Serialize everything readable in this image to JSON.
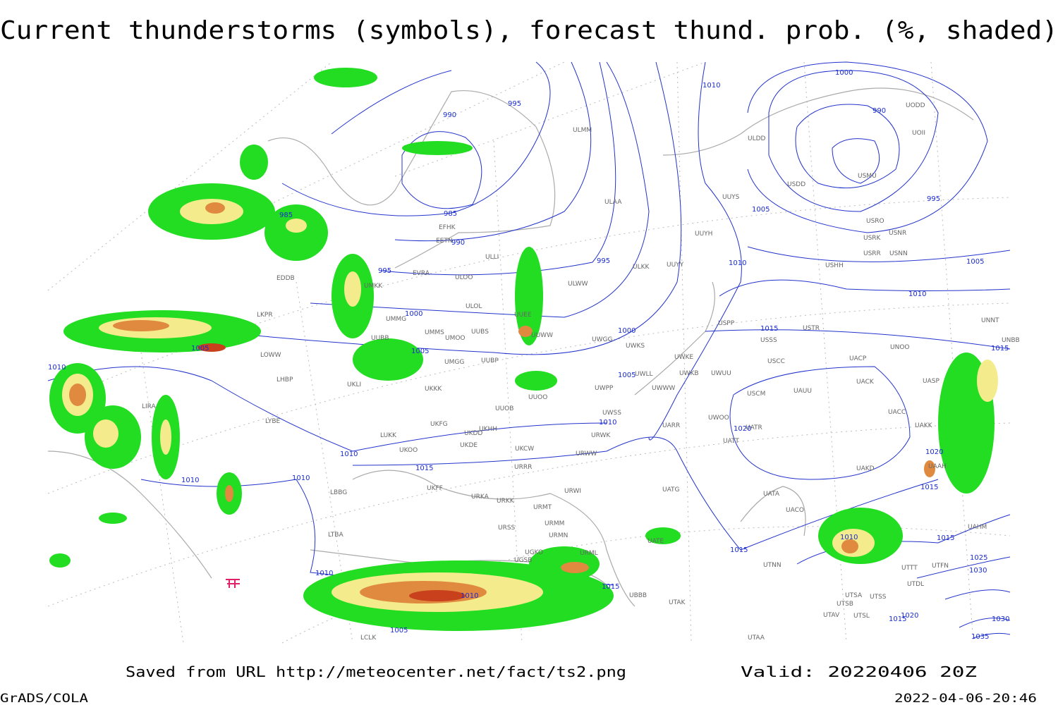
{
  "header": {
    "title": "Current thunderstorms (symbols), forecast thund. prob. (%, shaded)"
  },
  "map": {
    "stations": [
      "ULMM",
      "ULAA",
      "EFHK",
      "EETN",
      "EVRA",
      "ULLI",
      "ULOO",
      "ULWW",
      "ULKK",
      "UUYY",
      "UUYH",
      "UUYS",
      "ULDD",
      "UODD",
      "UOII",
      "USMU",
      "USDD",
      "USRO",
      "USNR",
      "USRK",
      "USRR",
      "USNN",
      "USHH",
      "UMKK",
      "EDDB",
      "LKPR",
      "UMMG",
      "ULOL",
      "UUEE",
      "UUWW",
      "UMMS",
      "UMOO",
      "UUBS",
      "UUBB",
      "UWGG",
      "UWKS",
      "UWKE",
      "UWKB",
      "UWUU",
      "UWWW",
      "UWLL",
      "LOWW",
      "UMGG",
      "UUBP",
      "UKKK",
      "UKLI",
      "LHBP",
      "LIRA",
      "UUOO",
      "UUOB",
      "UWPP",
      "UWSS",
      "LYBE",
      "UKFG",
      "UKDD",
      "UKHH",
      "UKDE",
      "UKCW",
      "URWW",
      "URWK",
      "UARR",
      "UWOO",
      "UATR",
      "UATT",
      "UACC",
      "UAKK",
      "UASP",
      "UACK",
      "UACP",
      "USCM",
      "UAUU",
      "USCC",
      "UNOO",
      "USSS",
      "USTR",
      "USPP",
      "UNNT",
      "UNBB",
      "LUKK",
      "UKOO",
      "URRR",
      "UKFF",
      "URKA",
      "URKK",
      "URMT",
      "URWI",
      "URMM",
      "URSS",
      "URMN",
      "URML",
      "UGKO",
      "UGSB",
      "UBBB",
      "UTAK",
      "UATG",
      "UATE",
      "UATA",
      "UACO",
      "UAKD",
      "UAAH",
      "UTNN",
      "UTSA",
      "UTSS",
      "UTSB",
      "UTAV",
      "UTSL",
      "UTAA",
      "UTDL",
      "LTBA",
      "LBBG",
      "LCLK",
      "UTTT",
      "UTFN",
      "UAHM"
    ],
    "isobar_labels": [
      990,
      995,
      1010,
      1000,
      990,
      995,
      985,
      985,
      990,
      995,
      995,
      1005,
      1010,
      1005,
      1010,
      1000,
      1000,
      1005,
      1005,
      1005,
      1015,
      1015,
      1010,
      1010,
      1020,
      1010,
      1015,
      1010,
      1010,
      1020,
      1015,
      1015,
      1010,
      1015,
      1025,
      1030,
      1010,
      1015,
      1010,
      1005,
      1020,
      1015,
      1035,
      1030
    ]
  },
  "footer": {
    "source": "Saved from URL http://meteocenter.net/fact/ts2.png",
    "valid": "Valid: 20220406 20Z",
    "credit": "GrADS/COLA",
    "timestamp": "2022-04-06-20:46"
  }
}
